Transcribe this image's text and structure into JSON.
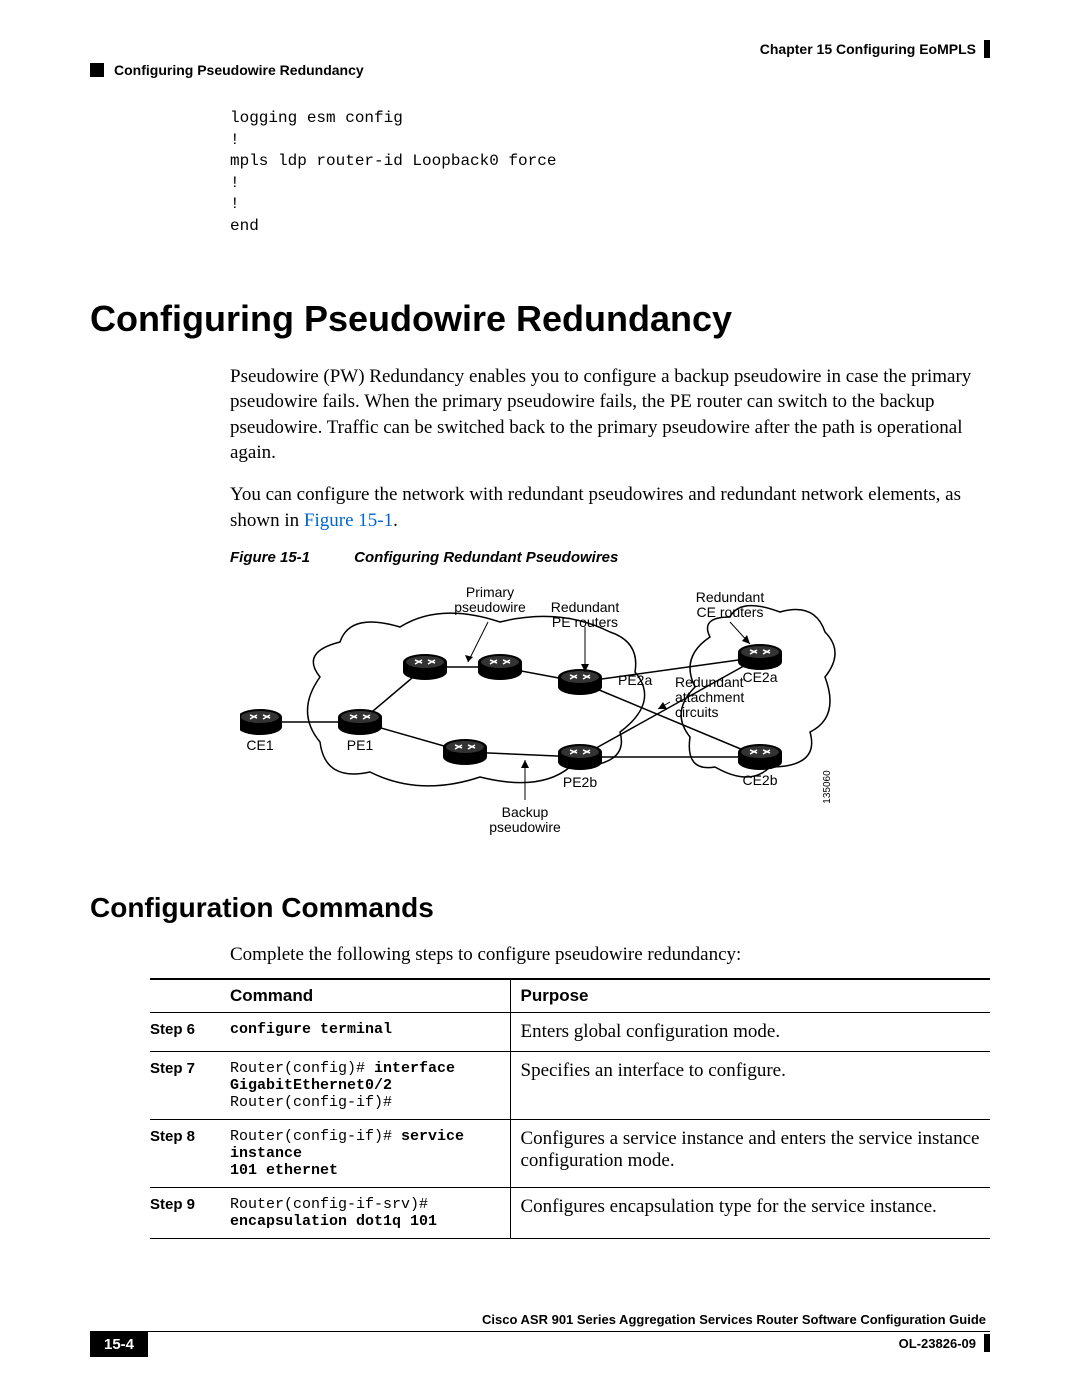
{
  "header": {
    "chapter": "Chapter 15    Configuring EoMPLS",
    "section": "Configuring Pseudowire Redundancy"
  },
  "code_block": "logging esm config\n!\nmpls ldp router-id Loopback0 force\n!\n!\nend",
  "h1": "Configuring Pseudowire Redundancy",
  "para1": "Pseudowire (PW) Redundancy enables you to configure a backup pseudowire in case the primary pseudowire fails. When the primary pseudowire fails, the PE router can switch to the backup pseudowire. Traffic can be switched back to the primary pseudowire after the path is operational again.",
  "para2_a": "You can configure the network with redundant pseudowires and redundant network elements, as shown in ",
  "para2_link": "Figure 15-1",
  "para2_b": ".",
  "figure": {
    "label": "Figure 15-1",
    "title": "Configuring Redundant Pseudowires"
  },
  "diagram": {
    "labels": {
      "primary_pw": "Primary\npseudowire",
      "redundant_pe": "Redundant\nPE routers",
      "redundant_ce": "Redundant\nCE routers",
      "redundant_att": "Redundant\nattachment\ncircuits",
      "backup_pw": "Backup\npseudowire",
      "ce1": "CE1",
      "pe1": "PE1",
      "pe2a": "PE2a",
      "pe2b": "PE2b",
      "ce2a": "CE2a",
      "ce2b": "CE2b",
      "refnum": "135060"
    }
  },
  "h2": "Configuration Commands",
  "table_intro": "Complete the following steps to configure pseudowire redundancy:",
  "table": {
    "headers": {
      "empty": "",
      "command": "Command",
      "purpose": "Purpose"
    },
    "rows": [
      {
        "step": "Step 6",
        "cmd_html": "<span class=\"bold\">configure terminal</span>",
        "purpose": "Enters global configuration mode."
      },
      {
        "step": "Step 7",
        "cmd_html": "Router(config)# <span class=\"bold\">interface\nGigabitEthernet0/2</span>\nRouter(config-if)#",
        "purpose": "Specifies an interface to configure."
      },
      {
        "step": "Step 8",
        "cmd_html": "Router(config-if)# <span class=\"bold\">service instance\n101 ethernet</span>",
        "purpose": "Configures a service instance and enters the service instance configuration mode."
      },
      {
        "step": "Step 9",
        "cmd_html": "Router(config-if-srv)#\n<span class=\"bold\">encapsulation dot1q 101</span>",
        "purpose": "Configures encapsulation type for the service instance."
      }
    ]
  },
  "footer": {
    "title": "Cisco ASR 901 Series Aggregation Services Router Software Configuration Guide",
    "page": "15-4",
    "doc_id": "OL-23826-09"
  }
}
